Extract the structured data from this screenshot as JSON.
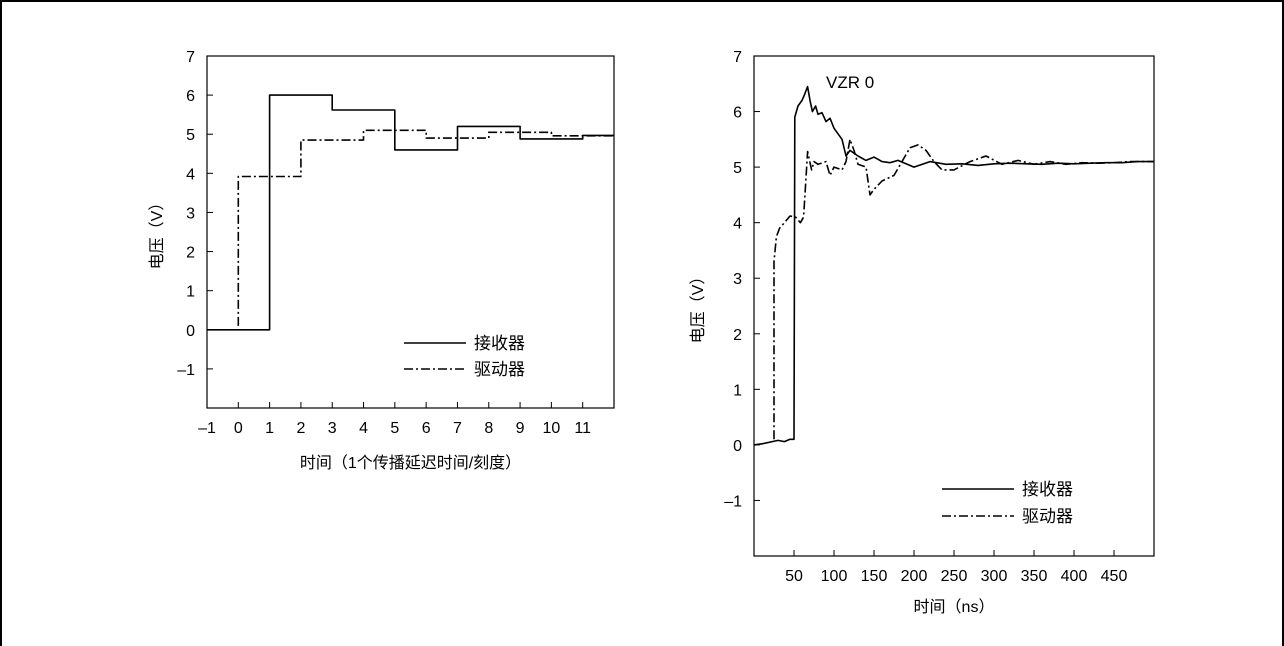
{
  "chart_data": [
    {
      "type": "line",
      "title": "",
      "xlabel": "时间（1个传播延迟时间/刻度）",
      "ylabel": "电压（V）",
      "xlim": [
        -1,
        12
      ],
      "ylim": [
        -2,
        7
      ],
      "xticks": [
        -1,
        0,
        1,
        2,
        3,
        4,
        5,
        6,
        7,
        8,
        9,
        10,
        11
      ],
      "x_tick_labels": [
        "–1",
        "0",
        "1",
        "2",
        "3",
        "4",
        "5",
        "6",
        "7",
        "8",
        "9",
        "10",
        "11"
      ],
      "yticks": [
        -1,
        0,
        1,
        2,
        3,
        4,
        5,
        6,
        7
      ],
      "y_tick_labels": [
        "–1",
        "0",
        "1",
        "2",
        "3",
        "4",
        "5",
        "6",
        "7"
      ],
      "grid": false,
      "legend": "bottom-right",
      "series": [
        {
          "name": "接收器",
          "style": "solid",
          "x": [
            -1,
            1,
            1,
            3,
            3,
            5,
            5,
            7,
            7,
            9,
            9,
            11,
            11,
            12
          ],
          "y": [
            0,
            0,
            6.0,
            6.0,
            5.62,
            5.62,
            4.6,
            4.6,
            5.2,
            5.2,
            4.88,
            4.88,
            4.97,
            4.97
          ]
        },
        {
          "name": "驱动器",
          "style": "dashdot",
          "x": [
            0,
            0,
            2,
            2,
            4,
            4,
            6,
            6,
            8,
            8,
            10,
            10,
            12
          ],
          "y": [
            0.1,
            3.92,
            3.92,
            4.85,
            4.85,
            5.1,
            5.1,
            4.9,
            4.9,
            5.05,
            5.05,
            4.96,
            4.96
          ]
        }
      ]
    },
    {
      "type": "line",
      "title": "",
      "annotations": [
        "VZR 0"
      ],
      "xlabel": "时间（ns）",
      "ylabel": "电压（V）",
      "xlim": [
        0,
        500
      ],
      "ylim": [
        -2,
        7
      ],
      "xticks": [
        50,
        100,
        150,
        200,
        250,
        300,
        350,
        400,
        450
      ],
      "x_tick_labels": [
        "50",
        "100",
        "150",
        "200",
        "250",
        "300",
        "350",
        "400",
        "450"
      ],
      "yticks": [
        -1,
        0,
        1,
        2,
        3,
        4,
        5,
        6,
        7
      ],
      "y_tick_labels": [
        "–1",
        "0",
        "1",
        "2",
        "3",
        "4",
        "5",
        "6",
        "7"
      ],
      "grid": false,
      "legend": "bottom-right",
      "series": [
        {
          "name": "接收器",
          "style": "solid",
          "x": [
            0,
            10,
            20,
            30,
            38,
            45,
            50,
            51,
            55,
            60,
            63,
            67,
            70,
            73,
            77,
            80,
            85,
            90,
            95,
            100,
            105,
            110,
            115,
            120,
            130,
            140,
            150,
            160,
            170,
            180,
            200,
            220,
            240,
            260,
            280,
            300,
            320,
            340,
            360,
            380,
            400,
            420,
            440,
            460,
            480,
            500
          ],
          "y": [
            0,
            0.02,
            0.05,
            0.08,
            0.06,
            0.1,
            0.1,
            5.9,
            6.1,
            6.2,
            6.3,
            6.45,
            6.2,
            6.0,
            6.1,
            5.95,
            5.98,
            5.82,
            5.88,
            5.7,
            5.6,
            5.5,
            5.2,
            5.3,
            5.2,
            5.12,
            5.18,
            5.1,
            5.08,
            5.12,
            5.0,
            5.1,
            5.05,
            5.06,
            5.03,
            5.06,
            5.07,
            5.06,
            5.05,
            5.07,
            5.06,
            5.07,
            5.08,
            5.08,
            5.1,
            5.1
          ]
        },
        {
          "name": "驱动器",
          "style": "dashdot",
          "x": [
            25,
            25,
            28,
            32,
            38,
            45,
            52,
            58,
            62,
            67,
            72,
            75,
            80,
            90,
            95,
            100,
            110,
            115,
            120,
            125,
            130,
            140,
            145,
            150,
            160,
            175,
            185,
            195,
            205,
            215,
            225,
            235,
            250,
            270,
            290,
            310,
            330,
            350,
            370,
            390,
            410,
            430,
            450,
            470,
            500
          ],
          "y": [
            0.1,
            3.3,
            3.75,
            3.9,
            4.0,
            4.12,
            4.1,
            4.0,
            4.1,
            5.28,
            4.95,
            5.1,
            5.05,
            5.1,
            4.85,
            5.0,
            4.95,
            5.1,
            5.5,
            5.3,
            5.05,
            5.0,
            4.5,
            4.6,
            4.75,
            4.85,
            5.1,
            5.35,
            5.4,
            5.3,
            5.1,
            4.95,
            4.95,
            5.1,
            5.2,
            5.05,
            5.12,
            5.05,
            5.1,
            5.05,
            5.08,
            5.07,
            5.08,
            5.1,
            5.1
          ]
        }
      ]
    }
  ]
}
